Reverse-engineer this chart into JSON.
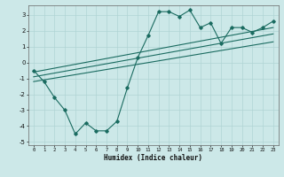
{
  "title": "",
  "xlabel": "Humidex (Indice chaleur)",
  "bg_color": "#cce8e8",
  "line_color": "#1a6b60",
  "grid_color": "#b0d4d4",
  "xlim": [
    -0.5,
    23.5
  ],
  "ylim": [
    -5.2,
    3.6
  ],
  "yticks": [
    -5,
    -4,
    -3,
    -2,
    -1,
    0,
    1,
    2,
    3
  ],
  "xticks": [
    0,
    1,
    2,
    3,
    4,
    5,
    6,
    7,
    8,
    9,
    10,
    11,
    12,
    13,
    14,
    15,
    16,
    17,
    18,
    19,
    20,
    21,
    22,
    23
  ],
  "series1_x": [
    0,
    1,
    2,
    3,
    4,
    5,
    6,
    7,
    8,
    9,
    10,
    11,
    12,
    13,
    14,
    15,
    16,
    17,
    18,
    19,
    20,
    21,
    22,
    23
  ],
  "series1_y": [
    -0.5,
    -1.2,
    -2.2,
    -3.0,
    -4.5,
    -3.8,
    -4.3,
    -4.3,
    -3.7,
    -1.6,
    0.3,
    1.7,
    3.2,
    3.2,
    2.9,
    3.3,
    2.2,
    2.5,
    1.2,
    2.2,
    2.2,
    1.9,
    2.2,
    2.6
  ],
  "series2_x": [
    0,
    23
  ],
  "series2_y": [
    -0.6,
    2.2
  ],
  "series3_x": [
    0,
    23
  ],
  "series3_y": [
    -0.9,
    1.8
  ],
  "series4_x": [
    0,
    23
  ],
  "series4_y": [
    -1.2,
    1.3
  ]
}
